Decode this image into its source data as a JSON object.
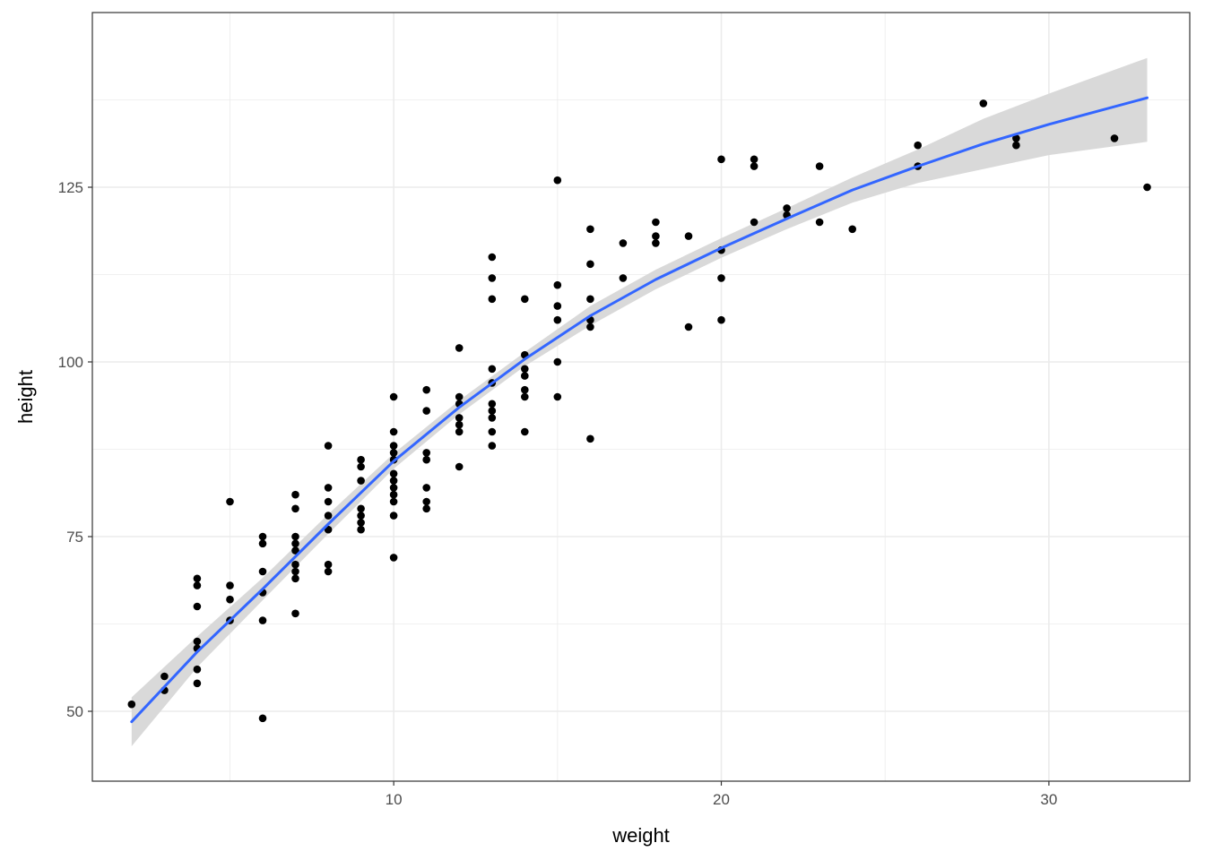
{
  "chart_data": {
    "type": "scatter",
    "title": "",
    "xlabel": "weight",
    "ylabel": "height",
    "xlim": [
      0.8,
      34.3
    ],
    "ylim": [
      40,
      150
    ],
    "x_ticks": [
      10,
      20,
      30
    ],
    "x_tick_labels": [
      "10",
      "20",
      "30"
    ],
    "y_ticks": [
      50,
      75,
      100,
      125
    ],
    "y_tick_labels": [
      "50",
      "75",
      "100",
      "125"
    ],
    "x_minor_ticks": [
      5,
      15,
      25
    ],
    "y_minor_ticks": [
      62.5,
      87.5,
      112.5,
      137.5
    ],
    "grid": true,
    "legend": "none",
    "colors": {
      "points": "#000000",
      "smooth_line": "#3366ff",
      "confidence_band": "#d9d9d9",
      "grid": "#ebebeb",
      "panel_border": "#333333"
    },
    "points": [
      [
        2,
        51
      ],
      [
        3,
        55
      ],
      [
        3,
        53
      ],
      [
        4,
        69
      ],
      [
        4,
        68
      ],
      [
        4,
        65
      ],
      [
        4,
        60
      ],
      [
        4,
        59
      ],
      [
        4,
        56
      ],
      [
        4,
        54
      ],
      [
        5,
        80
      ],
      [
        5,
        68
      ],
      [
        5,
        66
      ],
      [
        5,
        63
      ],
      [
        6,
        75
      ],
      [
        6,
        74
      ],
      [
        6,
        70
      ],
      [
        6,
        67
      ],
      [
        6,
        63
      ],
      [
        6,
        49
      ],
      [
        7,
        81
      ],
      [
        7,
        79
      ],
      [
        7,
        75
      ],
      [
        7,
        74
      ],
      [
        7,
        73
      ],
      [
        7,
        71
      ],
      [
        7,
        70
      ],
      [
        7,
        69
      ],
      [
        7,
        64
      ],
      [
        8,
        88
      ],
      [
        8,
        82
      ],
      [
        8,
        80
      ],
      [
        8,
        78
      ],
      [
        8,
        76
      ],
      [
        8,
        71
      ],
      [
        8,
        70
      ],
      [
        9,
        86
      ],
      [
        9,
        85
      ],
      [
        9,
        83
      ],
      [
        9,
        79
      ],
      [
        9,
        78
      ],
      [
        9,
        77
      ],
      [
        9,
        76
      ],
      [
        10,
        95
      ],
      [
        10,
        90
      ],
      [
        10,
        88
      ],
      [
        10,
        87
      ],
      [
        10,
        86
      ],
      [
        10,
        84
      ],
      [
        10,
        83
      ],
      [
        10,
        82
      ],
      [
        10,
        81
      ],
      [
        10,
        80
      ],
      [
        10,
        78
      ],
      [
        10,
        72
      ],
      [
        11,
        96
      ],
      [
        11,
        93
      ],
      [
        11,
        87
      ],
      [
        11,
        86
      ],
      [
        11,
        82
      ],
      [
        11,
        80
      ],
      [
        11,
        79
      ],
      [
        12,
        102
      ],
      [
        12,
        95
      ],
      [
        12,
        94
      ],
      [
        12,
        92
      ],
      [
        12,
        91
      ],
      [
        12,
        90
      ],
      [
        12,
        85
      ],
      [
        13,
        115
      ],
      [
        13,
        112
      ],
      [
        13,
        109
      ],
      [
        13,
        99
      ],
      [
        13,
        97
      ],
      [
        13,
        94
      ],
      [
        13,
        93
      ],
      [
        13,
        92
      ],
      [
        13,
        90
      ],
      [
        13,
        88
      ],
      [
        14,
        109
      ],
      [
        14,
        101
      ],
      [
        14,
        99
      ],
      [
        14,
        98
      ],
      [
        14,
        96
      ],
      [
        14,
        95
      ],
      [
        14,
        90
      ],
      [
        15,
        126
      ],
      [
        15,
        111
      ],
      [
        15,
        108
      ],
      [
        15,
        106
      ],
      [
        15,
        100
      ],
      [
        15,
        95
      ],
      [
        16,
        119
      ],
      [
        16,
        114
      ],
      [
        16,
        109
      ],
      [
        16,
        106
      ],
      [
        16,
        105
      ],
      [
        16,
        89
      ],
      [
        17,
        117
      ],
      [
        17,
        112
      ],
      [
        18,
        120
      ],
      [
        18,
        118
      ],
      [
        18,
        117
      ],
      [
        19,
        118
      ],
      [
        19,
        105
      ],
      [
        20,
        129
      ],
      [
        20,
        116
      ],
      [
        20,
        112
      ],
      [
        20,
        106
      ],
      [
        21,
        129
      ],
      [
        21,
        128
      ],
      [
        21,
        120
      ],
      [
        22,
        122
      ],
      [
        22,
        121
      ],
      [
        23,
        128
      ],
      [
        23,
        120
      ],
      [
        24,
        119
      ],
      [
        26,
        131
      ],
      [
        26,
        128
      ],
      [
        28,
        137
      ],
      [
        29,
        132
      ],
      [
        29,
        131
      ],
      [
        32,
        132
      ],
      [
        33,
        125
      ]
    ],
    "smooth_curve": {
      "x": [
        2,
        4,
        6,
        8,
        10,
        12,
        14,
        16,
        18,
        20,
        22,
        24,
        26,
        28,
        30,
        33
      ],
      "y": [
        48.5,
        58.5,
        67.5,
        76.8,
        85.8,
        93.5,
        100.4,
        106.6,
        111.8,
        116.3,
        120.5,
        124.6,
        128,
        131.2,
        134,
        137.8
      ],
      "lower": [
        45,
        56.3,
        65.9,
        75.4,
        84.7,
        92.5,
        99.4,
        105.2,
        110.4,
        114.9,
        119,
        122.8,
        125.6,
        127.6,
        129.6,
        131.5
      ],
      "upper": [
        52,
        60.7,
        69.1,
        78.2,
        86.9,
        94.5,
        101.4,
        108,
        113.2,
        117.7,
        122,
        126.4,
        130.4,
        134.8,
        138.4,
        143.5
      ]
    }
  }
}
